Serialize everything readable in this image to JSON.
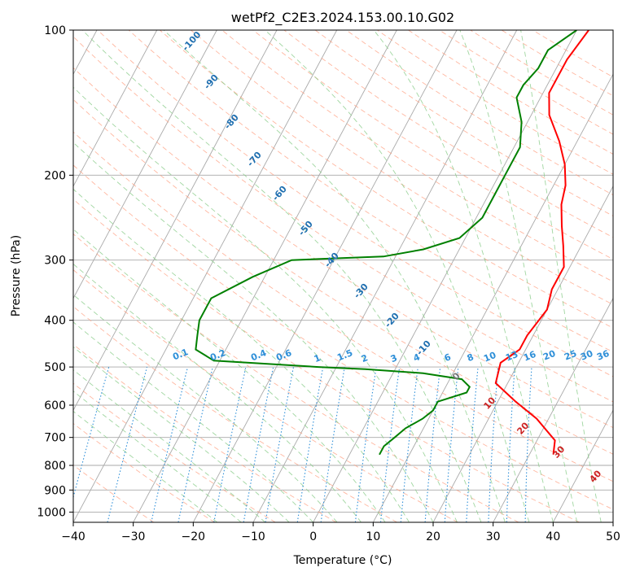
{
  "chart_data": {
    "type": "line",
    "title": "wetPf2_C2E3.2024.153.00.10.G02",
    "xlabel": "Temperature (°C)",
    "ylabel": "Pressure (hPa)",
    "xlim": [
      -40,
      50
    ],
    "ylim": [
      1050,
      100
    ],
    "y_scale": "log",
    "grid": true,
    "xticks": [
      -40,
      -30,
      -20,
      -10,
      0,
      10,
      20,
      30,
      40,
      50
    ],
    "yticks": [
      1000,
      900,
      800,
      700,
      600,
      500,
      400,
      300,
      200,
      100
    ],
    "series": [
      {
        "color": "#ff0000",
        "points": [
          [
            2,
            100
          ],
          [
            1,
            115
          ],
          [
            1,
            135
          ],
          [
            3,
            150
          ],
          [
            7,
            170
          ],
          [
            10,
            190
          ],
          [
            12,
            210
          ],
          [
            13,
            230
          ],
          [
            15,
            255
          ],
          [
            17,
            280
          ],
          [
            19,
            310
          ],
          [
            19,
            345
          ],
          [
            20,
            380
          ],
          [
            19,
            430
          ],
          [
            19,
            460
          ],
          [
            17,
            490
          ],
          [
            18,
            540
          ],
          [
            23,
            590
          ],
          [
            28,
            640
          ],
          [
            33,
            710
          ],
          [
            34,
            760
          ]
        ]
      },
      {
        "color": "#008000",
        "points": [
          [
            0,
            100
          ],
          [
            -3,
            110
          ],
          [
            -3,
            120
          ],
          [
            -4,
            130
          ],
          [
            -4,
            138
          ],
          [
            -1,
            155
          ],
          [
            1,
            175
          ],
          [
            1,
            200
          ],
          [
            1,
            220
          ],
          [
            1,
            245
          ],
          [
            -1,
            270
          ],
          [
            -6,
            285
          ],
          [
            -12,
            295
          ],
          [
            -27,
            300
          ],
          [
            -32,
            325
          ],
          [
            -37,
            360
          ],
          [
            -37,
            400
          ],
          [
            -36,
            430
          ],
          [
            -35,
            460
          ],
          [
            -31,
            485
          ],
          [
            -13,
            500
          ],
          [
            -5,
            505
          ],
          [
            5,
            515
          ],
          [
            12,
            530
          ],
          [
            14,
            550
          ],
          [
            14,
            565
          ],
          [
            10,
            590
          ],
          [
            10,
            615
          ],
          [
            9,
            640
          ],
          [
            7,
            670
          ],
          [
            6,
            700
          ],
          [
            5,
            730
          ],
          [
            5,
            760
          ]
        ]
      }
    ],
    "dry_adiabat_labels": [
      "-100",
      "-90",
      "-80",
      "-70",
      "-60",
      "-50",
      "-40",
      "-30",
      "-20",
      "-10"
    ],
    "mixing_ratio_labels": [
      "0.1",
      "0.2",
      "0.4",
      "0.6",
      "1",
      "1.5",
      "2",
      "3",
      "4",
      "6",
      "8",
      "10",
      "13",
      "16",
      "20",
      "25",
      "30",
      "36"
    ],
    "moist_adiabat_labels": [
      "0",
      "10",
      "20",
      "30",
      "40"
    ],
    "colors": {
      "temperature": "#ff0000",
      "dewpoint": "#008000",
      "isotherm": "#aaaaaa",
      "isobar": "#aaaaaa",
      "dry_adiabat": "#ff9977",
      "moist_adiabat": "#88cc88",
      "mixing_ratio": "#2e8fd8",
      "dry_label": "#1f6fb0",
      "moist_label": "#cc2222",
      "moist_label_zero": "#777777"
    }
  }
}
